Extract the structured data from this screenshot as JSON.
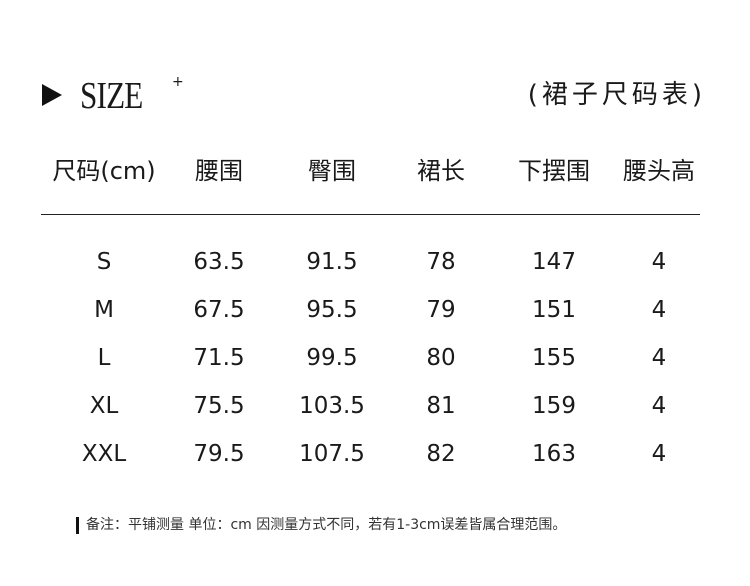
{
  "title": {
    "main": "SIZE",
    "superscript": "+",
    "subtitle": "(裙子尺码表)",
    "icon": "triangle-right-icon"
  },
  "table": {
    "headers": [
      "尺码(cm)",
      "腰围",
      "臀围",
      "裙长",
      "下摆围",
      "腰头高"
    ],
    "rows": [
      [
        "S",
        "63.5",
        "91.5",
        "78",
        "147",
        "4"
      ],
      [
        "M",
        "67.5",
        "95.5",
        "79",
        "151",
        "4"
      ],
      [
        "L",
        "71.5",
        "99.5",
        "80",
        "155",
        "4"
      ],
      [
        "XL",
        "75.5",
        "103.5",
        "81",
        "159",
        "4"
      ],
      [
        "XXL",
        "79.5",
        "107.5",
        "82",
        "163",
        "4"
      ]
    ]
  },
  "note": "备注：平铺测量  单位：cm  因测量方式不同，若有1-3cm误差皆属合理范围。"
}
